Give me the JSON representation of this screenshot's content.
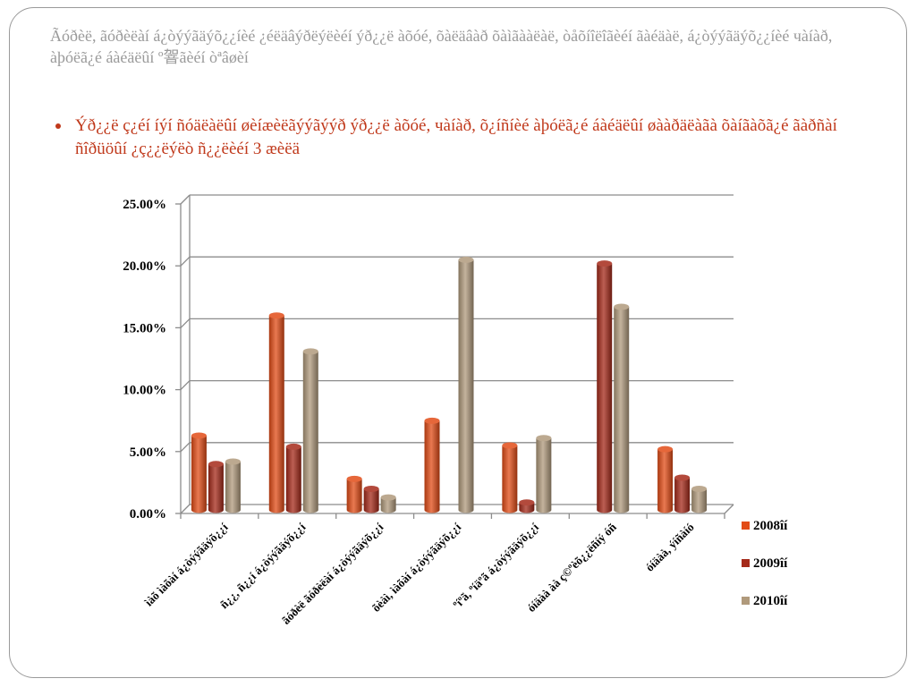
{
  "slide": {
    "title": "Ãóðèë, ãóðèëàí á¿òýýãäýõ¿¿íèé ¿éëäâýðëýëèéí ýð¿¿ë àõóé, õàëäâàð õàìãààëàë, òåõíîëîãèéí ãàéäàë, á¿òýýãäýõ¿¿íèé чàíàð, àþóëã¿é áàéäëûí º䪪ãèéí òªâøèí",
    "bullet": "Ýð¿¿ë ç¿éí íýí ñóäëàëûí øèíæèëãýýãýýð ýð¿¿ë àõóé, чàíàð, õ¿íñíèé àþóëã¿é áàéäëûí øààðäëàãà õàíãàõã¿é ãàðñàí ñîðüöûí ¿ç¿¿ëýëò ñ¿¿ëèéí 3 æèëä"
  },
  "chart_data": {
    "type": "bar",
    "title": "",
    "xlabel": "",
    "ylabel": "",
    "ylim": [
      0,
      25
    ],
    "y_ticks": [
      "0.00%",
      "5.00%",
      "10.00%",
      "15.00%",
      "20.00%",
      "25.00%"
    ],
    "y_tick_values": [
      0,
      5,
      10,
      15,
      20,
      25
    ],
    "grid": true,
    "legend_position": "right",
    "categories": [
      "ìàõ ìàõàí á¿òýýãäýõ¿¿í",
      "ñ¿¿, ñ¿¿í á¿òýýãäýõ¿¿í",
      "ãóðèë ãóðèëàí á¿òýýãäýõ¿¿í",
      "õèàì, ìàõàí á¿òýýãäýõ¿¿í",
      "ºíºã, ºíäºã á¿òýýãäýõ¿¿í",
      "óíäàà àà ç©ºèõ¿¿ëñíý óñ",
      "óíäàà, ýíñàíó"
    ],
    "series": [
      {
        "name": "2008îí",
        "color": "#e24c17",
        "values": [
          6.0,
          15.7,
          2.5,
          7.2,
          5.2,
          0,
          4.9
        ]
      },
      {
        "name": "2009îí",
        "color": "#a52a1a",
        "values": [
          3.7,
          5.1,
          1.7,
          0,
          0.6,
          19.9,
          2.6
        ]
      },
      {
        "name": "2010îí",
        "color": "#b09a7c",
        "values": [
          3.9,
          12.8,
          1.0,
          20.2,
          5.8,
          16.4,
          1.7
        ]
      }
    ]
  }
}
